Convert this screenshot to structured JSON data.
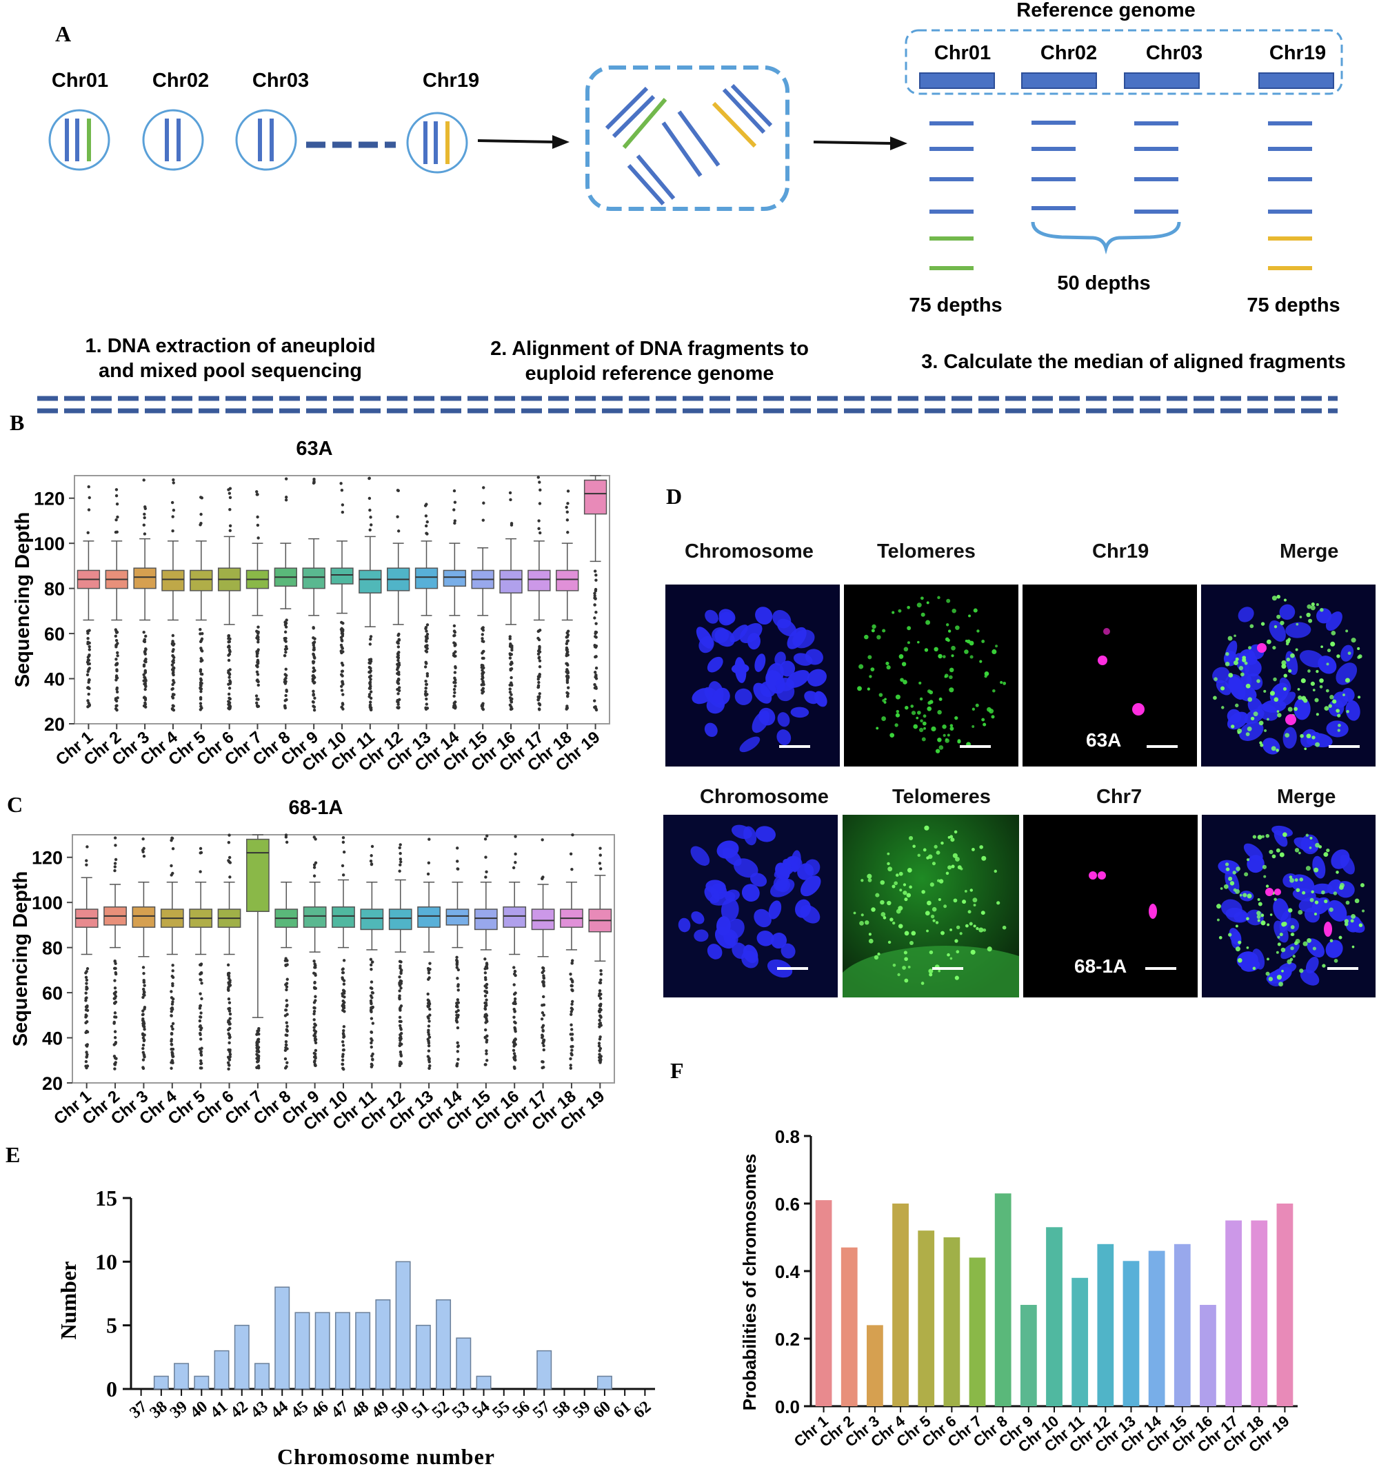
{
  "panelA": {
    "letter": "A",
    "chromosomes": [
      "Chr01",
      "Chr02",
      "Chr03",
      "Chr19"
    ],
    "reference_title": "Reference genome",
    "depth_left": "75 depths",
    "depth_mid": "50 depths",
    "depth_right": "75 depths",
    "step1_line1": "1. DNA extraction of aneuploid",
    "step1_line2": "and mixed pool sequencing",
    "step2_line1": "2. Alignment of DNA fragments to",
    "step2_line2": "euploid reference genome",
    "step3": "3. Calculate the median of aligned fragments",
    "colors": {
      "blue": "#4a72c4",
      "green": "#72b84c",
      "yellow": "#e8b830",
      "outline": "#5aa0d8",
      "divider": "#3a5a9a"
    }
  },
  "panelB": {
    "letter": "B",
    "chart_data": {
      "type": "box",
      "title": "63A",
      "ylabel": "Sequencing Depth",
      "ylim": [
        20,
        130
      ],
      "yticks": [
        20,
        40,
        60,
        80,
        100,
        120
      ],
      "categories": [
        "Chr 1",
        "Chr 2",
        "Chr 3",
        "Chr 4",
        "Chr 5",
        "Chr 6",
        "Chr 7",
        "Chr 8",
        "Chr 9",
        "Chr 10",
        "Chr 11",
        "Chr 12",
        "Chr 13",
        "Chr 14",
        "Chr 15",
        "Chr 16",
        "Chr 17",
        "Chr 18",
        "Chr 19"
      ],
      "colors": [
        "#e88a8e",
        "#e8907a",
        "#d6a050",
        "#bfa848",
        "#b0ae48",
        "#a0b048",
        "#8ab848",
        "#5ab87a",
        "#5ab890",
        "#50b8a0",
        "#50b8b8",
        "#50b4c8",
        "#58b0d8",
        "#78aee8",
        "#98a8ec",
        "#b0a0ec",
        "#cc98e8",
        "#e090d8",
        "#e88ab8"
      ],
      "median": [
        84,
        84,
        85,
        84,
        84,
        84,
        84,
        85,
        85,
        86,
        84,
        84,
        85,
        85,
        84,
        84,
        84,
        84,
        122
      ],
      "q1": [
        80,
        80,
        80,
        79,
        79,
        79,
        80,
        81,
        80,
        82,
        78,
        79,
        80,
        81,
        80,
        78,
        79,
        79,
        113
      ],
      "q3": [
        88,
        88,
        89,
        88,
        88,
        89,
        88,
        89,
        89,
        89,
        88,
        89,
        89,
        88,
        88,
        88,
        88,
        88,
        128
      ],
      "whisker_low": [
        66,
        66,
        66,
        66,
        66,
        64,
        68,
        71,
        68,
        69,
        63,
        64,
        68,
        68,
        68,
        64,
        66,
        66,
        92
      ],
      "whisker_high": [
        101,
        101,
        102,
        101,
        101,
        103,
        100,
        100,
        102,
        101,
        103,
        100,
        101,
        100,
        98,
        102,
        101,
        100,
        130
      ]
    }
  },
  "panelC": {
    "letter": "C",
    "chart_data": {
      "type": "box",
      "title": "68-1A",
      "ylabel": "Sequencing Depth",
      "ylim": [
        20,
        130
      ],
      "yticks": [
        20,
        40,
        60,
        80,
        100,
        120
      ],
      "categories": [
        "Chr 1",
        "Chr 2",
        "Chr 3",
        "Chr 4",
        "Chr 5",
        "Chr 6",
        "Chr 7",
        "Chr 8",
        "Chr 9",
        "Chr 10",
        "Chr 11",
        "Chr 12",
        "Chr 13",
        "Chr 14",
        "Chr 15",
        "Chr 16",
        "Chr 17",
        "Chr 18",
        "Chr 19"
      ],
      "colors": [
        "#e88a8e",
        "#e8907a",
        "#d6a050",
        "#bfa848",
        "#b0ae48",
        "#a0b048",
        "#8ab848",
        "#5ab87a",
        "#5ab890",
        "#50b8a0",
        "#50b8b8",
        "#50b4c8",
        "#58b0d8",
        "#78aee8",
        "#98a8ec",
        "#b0a0ec",
        "#cc98e8",
        "#e090d8",
        "#e88ab8"
      ],
      "median": [
        93,
        94,
        94,
        93,
        93,
        93,
        122,
        93,
        94,
        94,
        93,
        93,
        94,
        94,
        93,
        94,
        92,
        93,
        92
      ],
      "q1": [
        89,
        90,
        89,
        89,
        89,
        89,
        96,
        89,
        89,
        89,
        88,
        88,
        89,
        90,
        88,
        89,
        88,
        89,
        87
      ],
      "q3": [
        97,
        98,
        98,
        97,
        97,
        97,
        128,
        97,
        98,
        98,
        97,
        97,
        98,
        97,
        97,
        98,
        97,
        97,
        97
      ],
      "whisker_low": [
        77,
        80,
        76,
        77,
        77,
        77,
        49,
        80,
        78,
        80,
        79,
        78,
        78,
        80,
        79,
        77,
        76,
        79,
        74
      ],
      "whisker_high": [
        111,
        108,
        109,
        109,
        109,
        109,
        130,
        109,
        109,
        110,
        109,
        110,
        109,
        109,
        109,
        109,
        108,
        109,
        112
      ]
    }
  },
  "panelD": {
    "letter": "D",
    "top_labels": [
      "Chromosome",
      "Telomeres",
      "Chr19",
      "Merge"
    ],
    "top_sample": "63A",
    "bottom_labels": [
      "Chromosome",
      "Telomeres",
      "Chr7",
      "Merge"
    ],
    "bottom_sample": "68-1A"
  },
  "panelE": {
    "letter": "E",
    "chart_data": {
      "type": "bar",
      "xlabel": "Chromosome number",
      "ylabel": "Number",
      "ylim": [
        0,
        15
      ],
      "yticks": [
        0,
        5,
        10,
        15
      ],
      "categories": [
        "37",
        "38",
        "39",
        "40",
        "41",
        "42",
        "43",
        "44",
        "45",
        "46",
        "47",
        "48",
        "49",
        "50",
        "51",
        "52",
        "53",
        "54",
        "55",
        "56",
        "57",
        "58",
        "59",
        "60",
        "61",
        "62"
      ],
      "values": [
        0,
        1,
        2,
        1,
        3,
        5,
        2,
        8,
        6,
        6,
        6,
        6,
        7,
        10,
        5,
        7,
        4,
        1,
        0,
        0,
        3,
        0,
        0,
        1,
        0,
        0
      ],
      "color": "#a8c8f0"
    }
  },
  "panelF": {
    "letter": "F",
    "chart_data": {
      "type": "bar",
      "ylabel": "Probabilities of chromosomes",
      "ylim": [
        0,
        0.8
      ],
      "yticks": [
        "0.0",
        "0.2",
        "0.4",
        "0.6",
        "0.8"
      ],
      "categories": [
        "Chr 1",
        "Chr 2",
        "Chr 3",
        "Chr 4",
        "Chr 5",
        "Chr 6",
        "Chr 7",
        "Chr 8",
        "Chr 9",
        "Chr 10",
        "Chr 11",
        "Chr 12",
        "Chr 13",
        "Chr 14",
        "Chr 15",
        "Chr 16",
        "Chr 17",
        "Chr 18",
        "Chr 19"
      ],
      "values": [
        0.61,
        0.47,
        0.24,
        0.6,
        0.52,
        0.5,
        0.44,
        0.63,
        0.3,
        0.53,
        0.38,
        0.48,
        0.43,
        0.46,
        0.48,
        0.3,
        0.55,
        0.55,
        0.6
      ],
      "colors": [
        "#e88a8e",
        "#e8907a",
        "#d6a050",
        "#bfa848",
        "#b0ae48",
        "#a0b048",
        "#8ab848",
        "#5ab87a",
        "#5ab890",
        "#50b8a0",
        "#50b8b8",
        "#50b4c8",
        "#58b0d8",
        "#78aee8",
        "#98a8ec",
        "#b0a0ec",
        "#cc98e8",
        "#e090d8",
        "#e88ab8"
      ]
    }
  }
}
